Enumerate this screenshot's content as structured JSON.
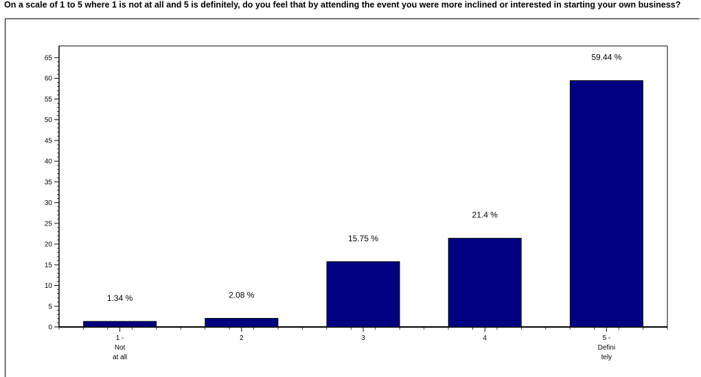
{
  "question": "On a scale of 1 to 5 where 1 is not at all and 5 is definitely, do you feel that by attending the event you were more inclined or interested in starting your own business?",
  "colors": {
    "bar": "#000080",
    "axis": "#000000",
    "text": "#000000"
  },
  "chart_data": {
    "type": "bar",
    "title": "",
    "xlabel": "",
    "ylabel": "",
    "ylim": [
      0,
      65
    ],
    "y_major_ticks": [
      0,
      5,
      10,
      15,
      20,
      25,
      30,
      35,
      40,
      45,
      50,
      55,
      60,
      65
    ],
    "grid": false,
    "legend": "none",
    "categories": [
      [
        "1 -",
        "Not",
        "at all"
      ],
      [
        "2"
      ],
      [
        "3"
      ],
      [
        "4"
      ],
      [
        "5 -",
        "Defini",
        "tely"
      ]
    ],
    "values": [
      1.34,
      2.08,
      15.75,
      21.4,
      59.44
    ],
    "data_labels": [
      "1.34 %",
      "2.08 %",
      "15.75 %",
      "21.4 %",
      "59.44 %"
    ]
  }
}
